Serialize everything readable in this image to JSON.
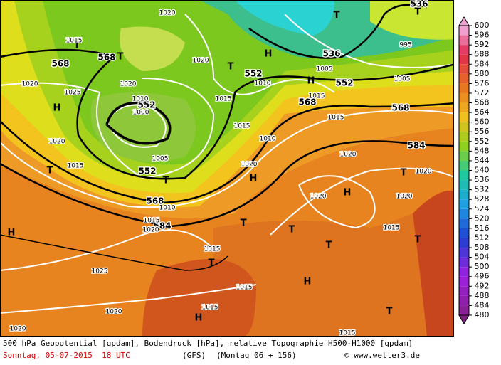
{
  "colorbar": {
    "labels": [
      "600",
      "596",
      "592",
      "588",
      "584",
      "580",
      "576",
      "572",
      "568",
      "564",
      "560",
      "556",
      "552",
      "548",
      "544",
      "540",
      "536",
      "532",
      "528",
      "524",
      "520",
      "516",
      "512",
      "508",
      "504",
      "500",
      "496",
      "492",
      "488",
      "484",
      "480"
    ]
  },
  "map_labels": [
    "T",
    "H",
    "T",
    "H",
    "T",
    "T",
    "T",
    "T",
    "T",
    "H",
    "T",
    "T",
    "H",
    "T",
    "H",
    "H",
    "H",
    "T",
    "T",
    "T",
    "H",
    "T",
    "568",
    "568",
    "552",
    "552",
    "568",
    "584",
    "552",
    "536",
    "552",
    "568",
    "568",
    "584",
    "536",
    "1015",
    "1020",
    "1025",
    "1020",
    "1015",
    "1010",
    "1000",
    "1005",
    "1010",
    "1015",
    "1020",
    "1015",
    "1025",
    "1020",
    "1020",
    "1015",
    "1015",
    "1015",
    "1015",
    "1020",
    "1020",
    "1020",
    "1020",
    "1010",
    "1015",
    "1020",
    "1015",
    "1010",
    "1015",
    "1015",
    "1005",
    "1005",
    "995",
    "1020",
    "1020",
    "1020"
  ],
  "caption": {
    "line1": "500 hPa Geopotential [gpdam], Bodendruck [hPa], relative Topographie H500-H1000 [gpdam]",
    "date": "Sonntag, 05-07-2015  18 UTC",
    "model": "(GFS)",
    "forecast": "(Montag 06 + 156)",
    "copyright": "© www.wetter3.de"
  }
}
